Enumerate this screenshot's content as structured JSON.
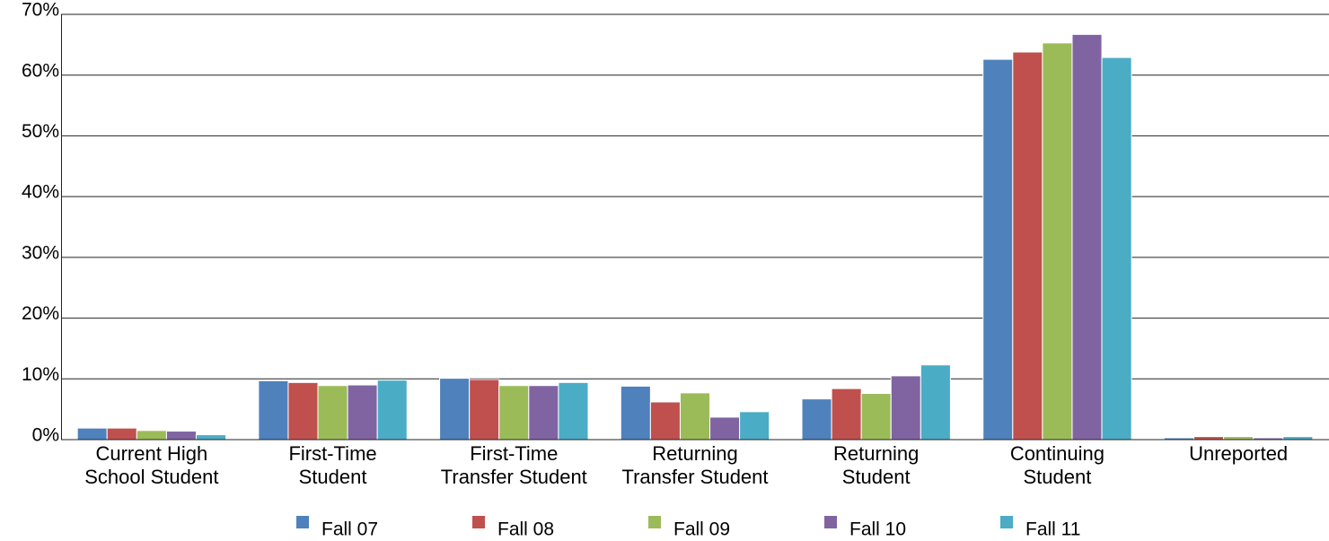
{
  "chart_data": {
    "type": "bar",
    "categories": [
      "Current High\nSchool Student",
      "First-Time\nStudent",
      "First-Time\nTransfer Student",
      "Returning\nTransfer Student",
      "Returning\nStudent",
      "Continuing\nStudent",
      "Unreported"
    ],
    "series": [
      {
        "name": "Fall 07",
        "color": "#4f81bd",
        "values": [
          1.9,
          9.7,
          10.1,
          8.8,
          6.7,
          62.6,
          0.3
        ]
      },
      {
        "name": "Fall 08",
        "color": "#c0504d",
        "values": [
          1.9,
          9.4,
          9.9,
          6.2,
          8.4,
          63.8,
          0.5
        ]
      },
      {
        "name": "Fall 09",
        "color": "#9bbb59",
        "values": [
          1.5,
          8.9,
          8.9,
          7.7,
          7.6,
          65.3,
          0.5
        ]
      },
      {
        "name": "Fall 10",
        "color": "#8064a2",
        "values": [
          1.4,
          9.0,
          8.9,
          3.7,
          10.5,
          66.7,
          0.3
        ]
      },
      {
        "name": "Fall 11",
        "color": "#4bacc6",
        "values": [
          0.8,
          9.8,
          9.4,
          4.6,
          12.3,
          62.9,
          0.5
        ]
      }
    ],
    "ylim": [
      0,
      70
    ],
    "yticks": [
      {
        "value": 0,
        "label": "0%"
      },
      {
        "value": 10,
        "label": "10%"
      },
      {
        "value": 20,
        "label": "20%"
      },
      {
        "value": 30,
        "label": "30%"
      },
      {
        "value": 40,
        "label": "40%"
      },
      {
        "value": 50,
        "label": "50%"
      },
      {
        "value": 60,
        "label": "60%"
      },
      {
        "value": 70,
        "label": "70%"
      }
    ],
    "grid": true,
    "legend": "bottom"
  }
}
